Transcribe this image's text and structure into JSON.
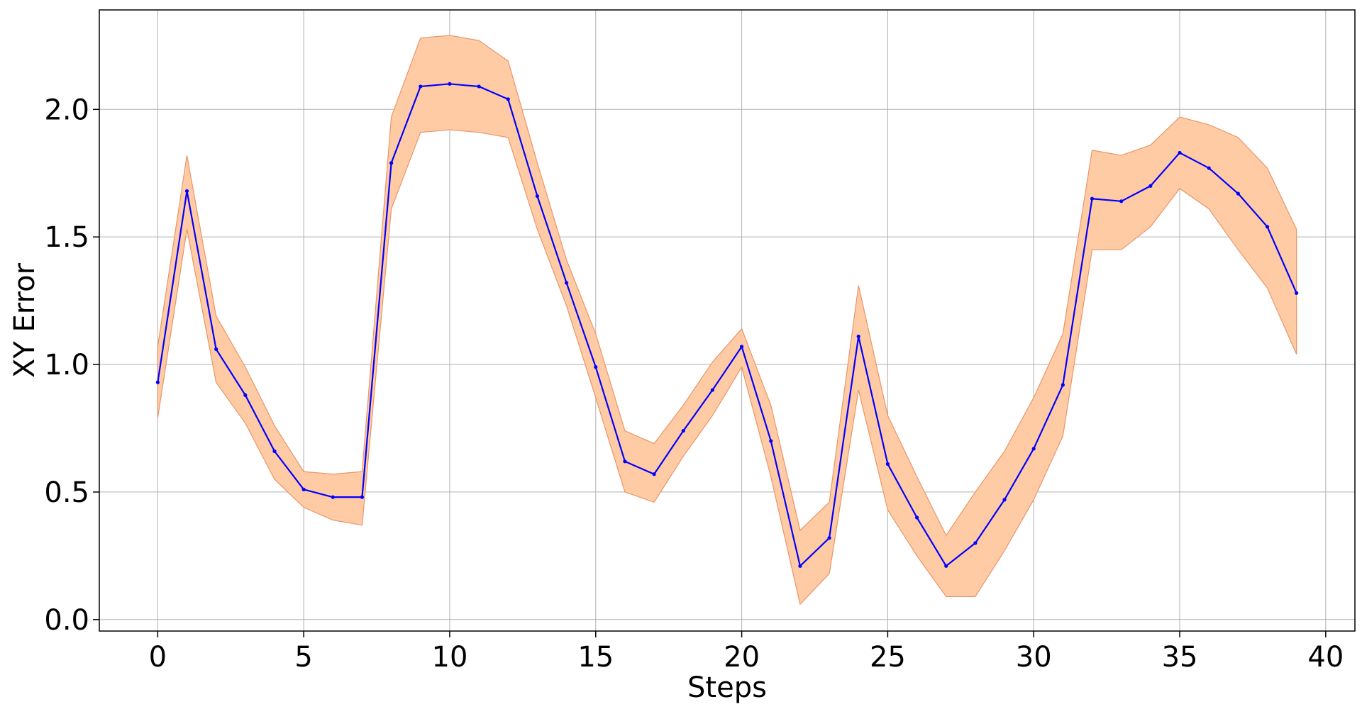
{
  "chart_data": {
    "type": "line",
    "title": "",
    "xlabel": "Steps",
    "ylabel": "XY Error",
    "xlim": [
      -2,
      41
    ],
    "ylim": [
      -0.045,
      2.39
    ],
    "xticks": [
      0,
      5,
      10,
      15,
      20,
      25,
      30,
      35,
      40
    ],
    "yticks": [
      0.0,
      0.5,
      1.0,
      1.5,
      2.0
    ],
    "xtick_labels": [
      "0",
      "5",
      "10",
      "15",
      "20",
      "25",
      "30",
      "35",
      "40"
    ],
    "ytick_labels": [
      "0.0",
      "0.5",
      "1.0",
      "1.5",
      "2.0"
    ],
    "grid": true,
    "legend": "none",
    "colors": {
      "line": "#0000ff",
      "band_fill": "#ffcba4",
      "band_edge": "#e8956a",
      "grid": "#b0b0b0",
      "axes": "#000000"
    },
    "x": [
      0,
      1,
      2,
      3,
      4,
      5,
      6,
      7,
      8,
      9,
      10,
      11,
      12,
      13,
      14,
      15,
      16,
      17,
      18,
      19,
      20,
      21,
      22,
      23,
      24,
      25,
      26,
      27,
      28,
      29,
      30,
      31,
      32,
      33,
      34,
      35,
      36,
      37,
      38,
      39
    ],
    "series": [
      {
        "values": [
          0.93,
          1.68,
          1.06,
          0.88,
          0.66,
          0.51,
          0.48,
          0.48,
          1.79,
          2.09,
          2.1,
          2.09,
          2.04,
          1.66,
          1.32,
          0.99,
          0.62,
          0.57,
          0.74,
          0.9,
          1.07,
          0.7,
          0.21,
          0.32,
          1.11,
          0.61,
          0.4,
          0.21,
          0.3,
          0.47,
          0.67,
          0.92,
          1.65,
          1.64,
          1.7,
          1.83,
          1.77,
          1.67,
          1.54,
          1.28
        ],
        "lower": [
          0.79,
          1.53,
          0.93,
          0.77,
          0.55,
          0.44,
          0.39,
          0.37,
          1.61,
          1.91,
          1.92,
          1.91,
          1.89,
          1.53,
          1.23,
          0.87,
          0.5,
          0.46,
          0.64,
          0.8,
          0.99,
          0.56,
          0.06,
          0.18,
          0.9,
          0.43,
          0.25,
          0.09,
          0.09,
          0.27,
          0.47,
          0.72,
          1.45,
          1.45,
          1.54,
          1.69,
          1.61,
          1.45,
          1.3,
          1.04
        ],
        "upper": [
          1.07,
          1.82,
          1.19,
          0.99,
          0.76,
          0.58,
          0.57,
          0.58,
          1.97,
          2.28,
          2.29,
          2.27,
          2.19,
          1.79,
          1.41,
          1.12,
          0.74,
          0.69,
          0.84,
          1.01,
          1.14,
          0.84,
          0.35,
          0.46,
          1.31,
          0.8,
          0.56,
          0.33,
          0.5,
          0.66,
          0.87,
          1.12,
          1.84,
          1.82,
          1.86,
          1.97,
          1.94,
          1.89,
          1.77,
          1.53
        ]
      }
    ]
  }
}
